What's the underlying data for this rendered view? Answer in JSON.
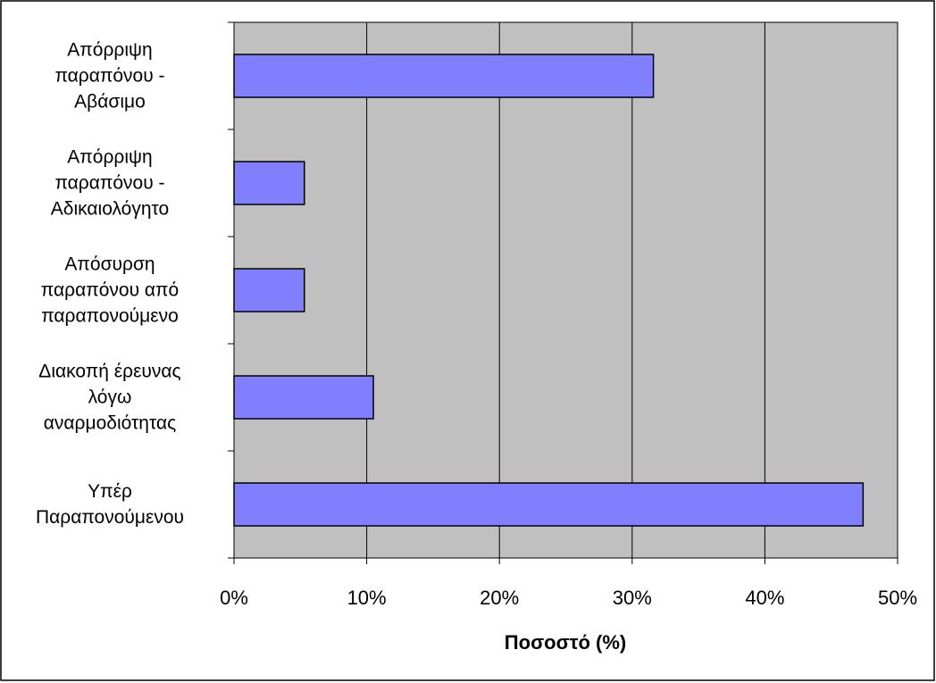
{
  "chart_data": {
    "type": "bar",
    "orientation": "horizontal",
    "categories": [
      "Απόρριψη\nπαραπόνου -\nΑβάσιμο",
      "Απόρριψη\nπαραπόνου -\nΑδικαιολόγητο",
      "Απόσυρση\nπαραπόνου από\nπαραπονούμενο",
      "Διακοπή έρευνας\nλόγω\nαναρμοδιότητας",
      "Υπέρ\nΠαραπονούμενου"
    ],
    "values": [
      31.6,
      5.3,
      5.3,
      10.5,
      47.4
    ],
    "color": "#8080ff",
    "xlabel": "Ποσοστό (%)",
    "xlim": [
      0,
      50
    ],
    "xticks": [
      {
        "value": 0,
        "label": "0%"
      },
      {
        "value": 10,
        "label": "10%"
      },
      {
        "value": 20,
        "label": "20%"
      },
      {
        "value": 30,
        "label": "30%"
      },
      {
        "value": 40,
        "label": "40%"
      },
      {
        "value": 50,
        "label": "50%"
      }
    ],
    "grid": true
  }
}
